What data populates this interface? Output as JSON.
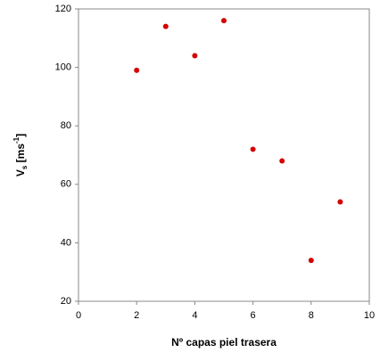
{
  "chart_data": {
    "type": "scatter",
    "xlabel": "Nº capas piel trasera",
    "ylabel_parts": [
      "V",
      "s",
      " [ms",
      "-1",
      "]"
    ],
    "x": [
      2,
      3,
      4,
      5,
      6,
      7,
      8,
      9
    ],
    "values": [
      99,
      114,
      104,
      116,
      72,
      68,
      34,
      54
    ],
    "color": "#d40000",
    "xlim": [
      0,
      10
    ],
    "xticks": [
      0,
      2,
      4,
      6,
      8,
      10
    ],
    "ylim": [
      20,
      120
    ],
    "yticks": [
      20,
      40,
      60,
      80,
      100,
      120
    ],
    "grid": false
  }
}
